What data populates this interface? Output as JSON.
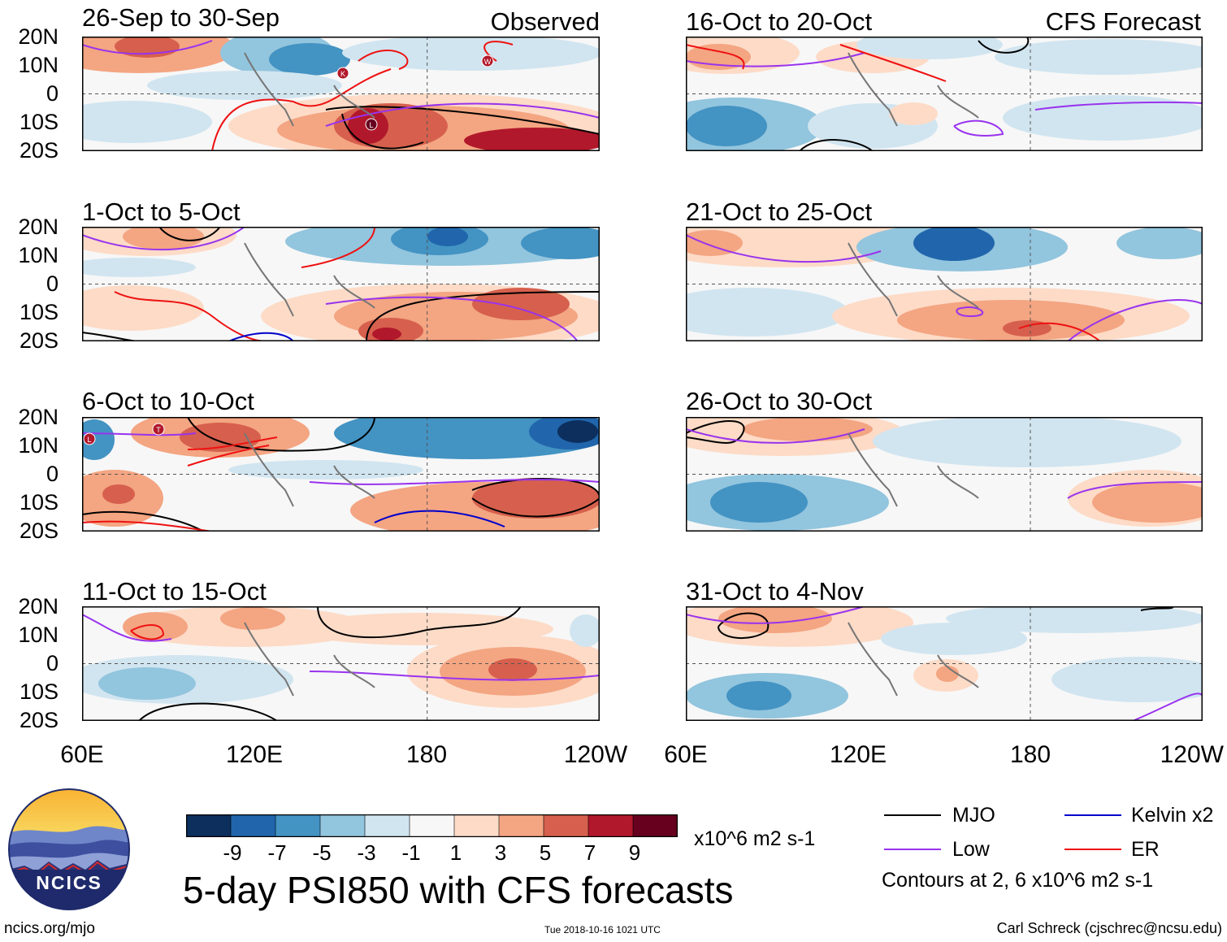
{
  "panels": {
    "left": [
      {
        "title": "26-Sep to 30-Sep",
        "tag": "Observed"
      },
      {
        "title": "1-Oct to 5-Oct",
        "tag": ""
      },
      {
        "title": "6-Oct to 10-Oct",
        "tag": ""
      },
      {
        "title": "11-Oct to 15-Oct",
        "tag": ""
      }
    ],
    "right": [
      {
        "title": "16-Oct to 20-Oct",
        "tag": "CFS Forecast"
      },
      {
        "title": "21-Oct to 25-Oct",
        "tag": ""
      },
      {
        "title": "26-Oct to 30-Oct",
        "tag": ""
      },
      {
        "title": "31-Oct to 4-Nov",
        "tag": ""
      }
    ]
  },
  "lat_labels": [
    "20N",
    "10N",
    "0",
    "10S",
    "20S"
  ],
  "lon_labels": [
    "60E",
    "120E",
    "180",
    "120W"
  ],
  "storm_markers": [
    {
      "panel": "left-0",
      "letter": "K"
    },
    {
      "panel": "left-0",
      "letter": "W"
    },
    {
      "panel": "left-0",
      "letter": "L"
    },
    {
      "panel": "left-2",
      "letter": "L"
    },
    {
      "panel": "left-2",
      "letter": "T"
    }
  ],
  "colorbar": {
    "colors": [
      "#0c2f5e",
      "#2166ac",
      "#4393c3",
      "#92c5de",
      "#d1e5f0",
      "#f7f7f7",
      "#fddbc7",
      "#f4a582",
      "#d6604d",
      "#b2182b",
      "#67001f"
    ],
    "labels": [
      "-9",
      "-7",
      "-5",
      "-3",
      "-1",
      "1",
      "3",
      "5",
      "7",
      "9"
    ],
    "units": "x10^6 m2 s-1"
  },
  "main_title": "5-day PSI850 with CFS forecasts",
  "legend": {
    "items": [
      {
        "label": "MJO",
        "color": "#000000"
      },
      {
        "label": "Kelvin x2",
        "color": "#0000cc"
      },
      {
        "label": "Low",
        "color": "#9933ee"
      },
      {
        "label": "ER",
        "color": "#ee1111"
      }
    ],
    "note": "Contours at 2, 6 x10^6 m2 s-1"
  },
  "logo_text": "NCICS",
  "footer": {
    "url": "ncics.org/mjo",
    "timestamp": "Tue 2018-10-16 1021 UTC",
    "credit": "Carl Schreck (cjschrec@ncsu.edu)"
  }
}
